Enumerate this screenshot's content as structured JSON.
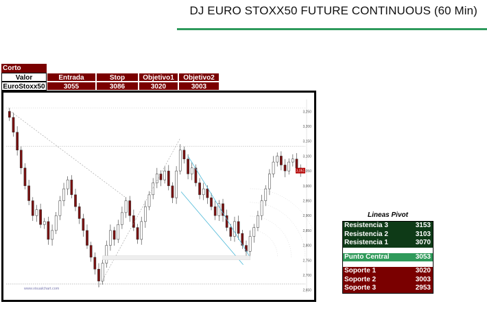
{
  "header": {
    "title": "DJ EURO STOXX50 FUTURE CONTINUOUS (60 Min)"
  },
  "trade": {
    "position": "Corto",
    "headers": [
      "Valor",
      "Entrada",
      "Stop",
      "Objetivo1",
      "Objetivo2"
    ],
    "row": [
      "EuroStoxx50",
      "3055",
      "3086",
      "3020",
      "3003"
    ]
  },
  "pivots": {
    "title": "Lineas Pivot",
    "resistances": [
      {
        "label": "Resistencia 3",
        "value": "3153"
      },
      {
        "label": "Resistencia 2",
        "value": "3103"
      },
      {
        "label": "Resistencia 1",
        "value": "3070"
      }
    ],
    "central": {
      "label": "Punto Central",
      "value": "3053"
    },
    "supports": [
      {
        "label": "Soporte 1",
        "value": "3020"
      },
      {
        "label": "Soporte 2",
        "value": "3003"
      },
      {
        "label": "Soporte 3",
        "value": "2953"
      }
    ],
    "colors": {
      "resistance": "#0e3a17",
      "central": "#2f9a5a",
      "support": "#7a0000"
    }
  },
  "chart_data": {
    "type": "candlestick",
    "yticks": [
      2650,
      2700,
      2750,
      2800,
      2850,
      2900,
      2950,
      3000,
      3050,
      3100,
      3150,
      3200,
      3250
    ],
    "ylim": [
      2640,
      3290
    ],
    "last_price": "3,051",
    "watermark": "www.visualchart.com",
    "closes": [
      3230,
      3180,
      3120,
      3060,
      3000,
      2950,
      2900,
      2920,
      2870,
      2880,
      2820,
      2850,
      2900,
      2950,
      2990,
      3020,
      2970,
      2930,
      2890,
      2850,
      2800,
      2760,
      2720,
      2680,
      2740,
      2800,
      2850,
      2820,
      2870,
      2910,
      2950,
      2900,
      2860,
      2820,
      2880,
      2930,
      2970,
      3010,
      3040,
      3020,
      3050,
      3000,
      2960,
      3050,
      3120,
      3090,
      3040,
      3060,
      3010,
      2970,
      2990,
      2960,
      2930,
      2900,
      2940,
      2900,
      2860,
      2830,
      2880,
      2840,
      2800,
      2780,
      2830,
      2860,
      2900,
      2950,
      2990,
      3040,
      3080,
      3100,
      3070,
      3050,
      3080,
      3090,
      3060,
      3051
    ],
    "pivot_levels": [
      3153,
      3103,
      3070,
      3053,
      3020,
      3003,
      2953
    ]
  }
}
